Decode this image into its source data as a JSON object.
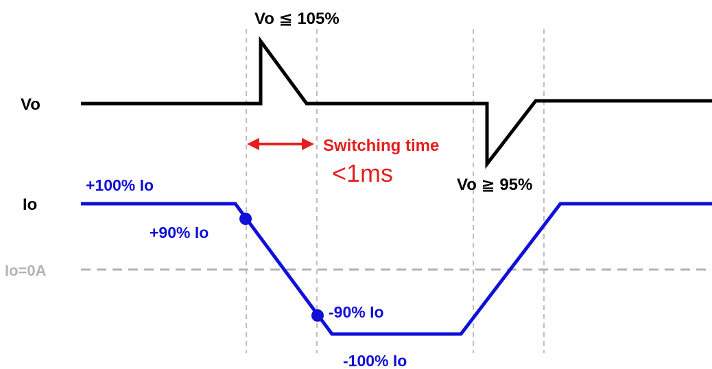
{
  "labels": {
    "vo_axis": "Vo",
    "io_axis": "Io",
    "zero_line": "Io=0A",
    "vo_overshoot": "Vo ≦ 105%",
    "vo_undershoot": "Vo ≧ 95%",
    "switching_time": "Switching time",
    "switching_value": "<1ms",
    "io_plus_100": "+100% Io",
    "io_plus_90": "+90% Io",
    "io_minus_90": "-90% Io",
    "io_minus_100": "-100% Io"
  },
  "colors": {
    "vo_trace": "#000000",
    "io_trace": "#1010d8",
    "zero_line": "#b3b3b3",
    "guide_lines": "#9a9a9a",
    "switching_arrow": "#e61e1e"
  }
}
